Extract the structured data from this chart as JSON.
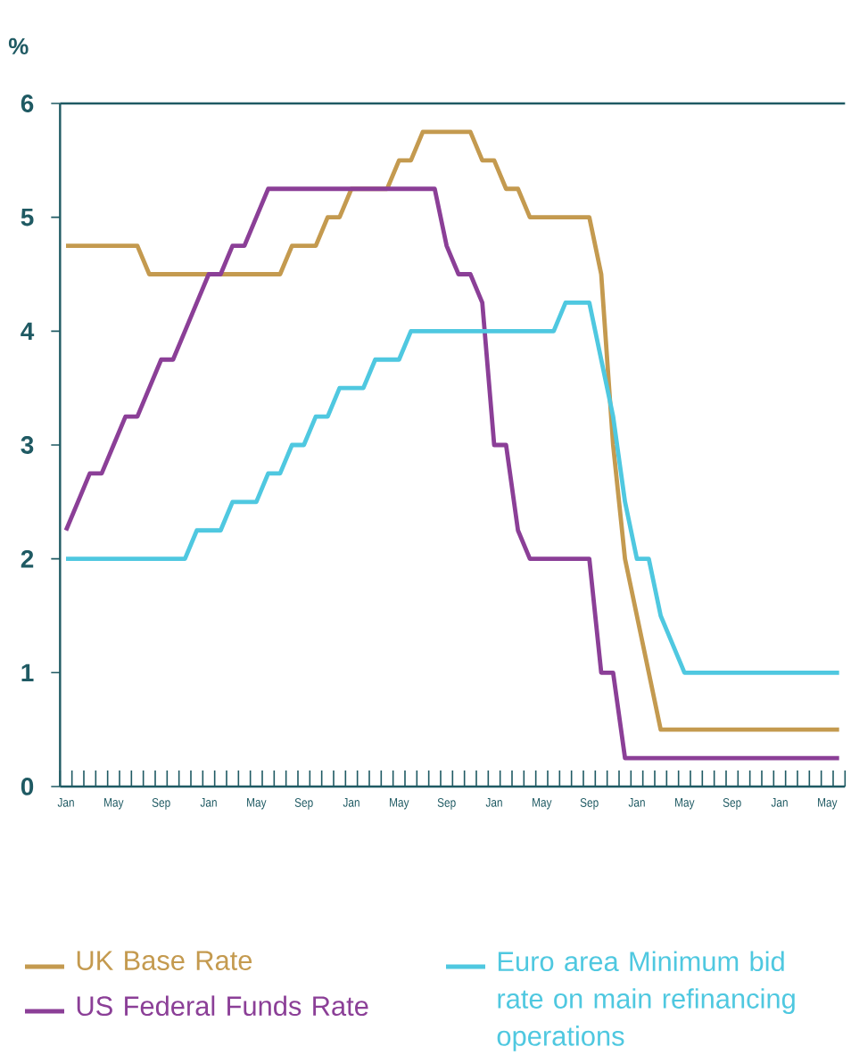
{
  "chart_data": {
    "type": "line",
    "ylabel": "%",
    "ylim": [
      0,
      6
    ],
    "yticks": [
      0,
      1,
      2,
      3,
      4,
      5,
      6
    ],
    "categories": [
      "Jan",
      null,
      null,
      null,
      "May",
      null,
      null,
      null,
      "Sep",
      null,
      null,
      null,
      "Jan",
      null,
      null,
      null,
      "May",
      null,
      null,
      null,
      "Sep",
      null,
      null,
      null,
      "Jan",
      null,
      null,
      null,
      "May",
      null,
      null,
      null,
      "Sep",
      null,
      null,
      null,
      "Jan",
      null,
      null,
      null,
      "May",
      null,
      null,
      null,
      "Sep",
      null,
      null,
      null,
      "Jan",
      null,
      null,
      null,
      "May",
      null,
      null,
      null,
      "Sep",
      null,
      null,
      null,
      "Jan",
      null,
      null,
      null,
      "May",
      null
    ],
    "grid": false,
    "legend": "bottom",
    "marker": "none",
    "line_style": "solid",
    "series": [
      {
        "name": "UK Base Rate",
        "color": "#c49a4f",
        "values": [
          4.75,
          4.75,
          4.75,
          4.75,
          4.75,
          4.75,
          4.75,
          4.5,
          4.5,
          4.5,
          4.5,
          4.5,
          4.5,
          4.5,
          4.5,
          4.5,
          4.5,
          4.5,
          4.5,
          4.75,
          4.75,
          4.75,
          5.0,
          5.0,
          5.25,
          5.25,
          5.25,
          5.25,
          5.5,
          5.5,
          5.75,
          5.75,
          5.75,
          5.75,
          5.75,
          5.5,
          5.5,
          5.25,
          5.25,
          5.0,
          5.0,
          5.0,
          5.0,
          5.0,
          5.0,
          4.5,
          3.0,
          2.0,
          1.5,
          1.0,
          0.5,
          0.5,
          0.5,
          0.5,
          0.5,
          0.5,
          0.5,
          0.5,
          0.5,
          0.5,
          0.5,
          0.5,
          0.5,
          0.5,
          0.5,
          0.5
        ]
      },
      {
        "name": "US Federal Funds Rate",
        "color": "#8b3f97",
        "values": [
          2.25,
          2.5,
          2.75,
          2.75,
          3.0,
          3.25,
          3.25,
          3.5,
          3.75,
          3.75,
          4.0,
          4.25,
          4.5,
          4.5,
          4.75,
          4.75,
          5.0,
          5.25,
          5.25,
          5.25,
          5.25,
          5.25,
          5.25,
          5.25,
          5.25,
          5.25,
          5.25,
          5.25,
          5.25,
          5.25,
          5.25,
          5.25,
          4.75,
          4.5,
          4.5,
          4.25,
          3.0,
          3.0,
          2.25,
          2.0,
          2.0,
          2.0,
          2.0,
          2.0,
          2.0,
          1.0,
          1.0,
          0.25,
          0.25,
          0.25,
          0.25,
          0.25,
          0.25,
          0.25,
          0.25,
          0.25,
          0.25,
          0.25,
          0.25,
          0.25,
          0.25,
          0.25,
          0.25,
          0.25,
          0.25,
          0.25
        ]
      },
      {
        "name": "Euro area Minimum bid rate on main refinancing operations",
        "color": "#4fc8e0",
        "values": [
          2.0,
          2.0,
          2.0,
          2.0,
          2.0,
          2.0,
          2.0,
          2.0,
          2.0,
          2.0,
          2.0,
          2.25,
          2.25,
          2.25,
          2.5,
          2.5,
          2.5,
          2.75,
          2.75,
          3.0,
          3.0,
          3.25,
          3.25,
          3.5,
          3.5,
          3.5,
          3.75,
          3.75,
          3.75,
          4.0,
          4.0,
          4.0,
          4.0,
          4.0,
          4.0,
          4.0,
          4.0,
          4.0,
          4.0,
          4.0,
          4.0,
          4.0,
          4.25,
          4.25,
          4.25,
          3.75,
          3.25,
          2.5,
          2.0,
          2.0,
          1.5,
          1.25,
          1.0,
          1.0,
          1.0,
          1.0,
          1.0,
          1.0,
          1.0,
          1.0,
          1.0,
          1.0,
          1.0,
          1.0,
          1.0,
          1.0
        ]
      }
    ]
  }
}
